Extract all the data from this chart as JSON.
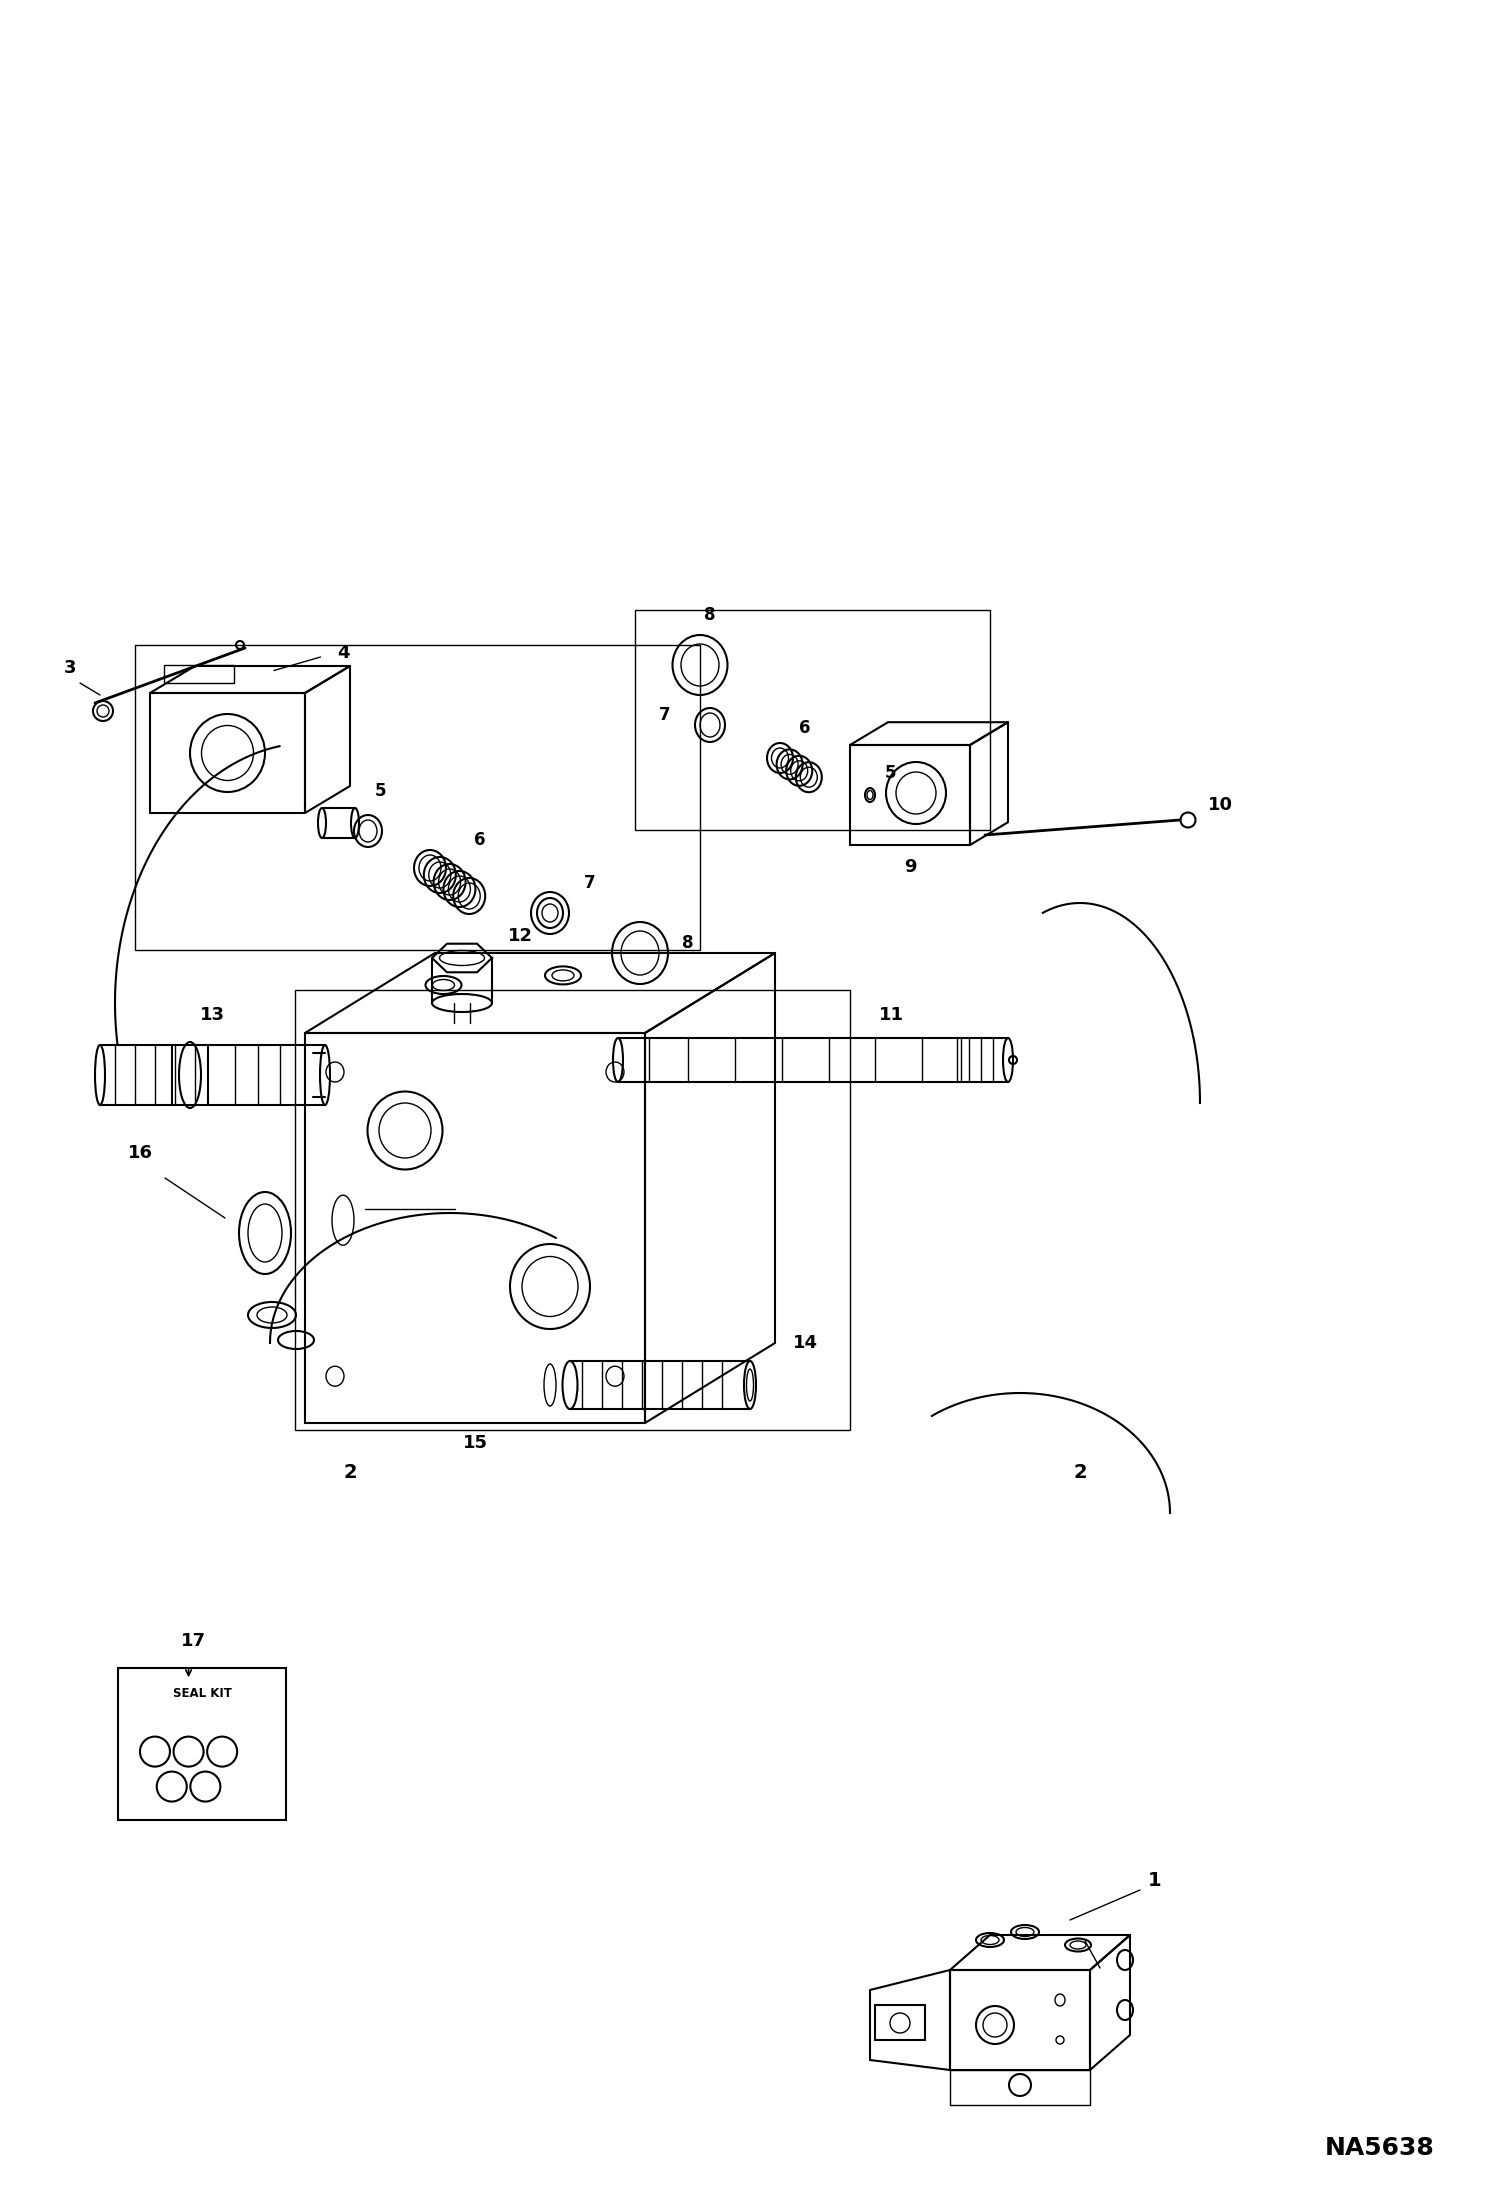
{
  "bg_color": "#ffffff",
  "line_color": "#000000",
  "fig_width": 14.98,
  "fig_height": 21.93,
  "dpi": 100,
  "watermark": "NA5638",
  "label_color": "#000000",
  "label_fontsize": 13,
  "label_bold": true
}
